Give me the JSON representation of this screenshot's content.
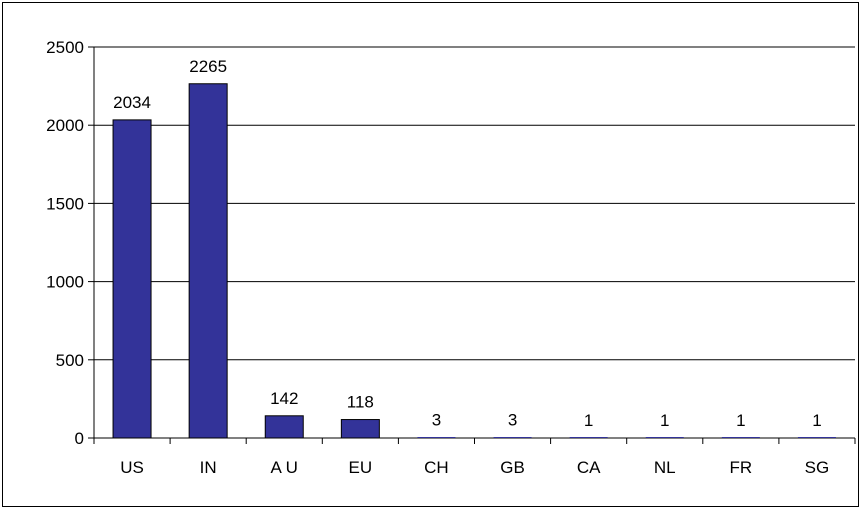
{
  "colors": {
    "bar_fill": "#333399",
    "bar_stroke": "#000000",
    "grid": "#000000",
    "background": "#ffffff"
  },
  "chart_data": {
    "type": "bar",
    "categories": [
      "US",
      "IN",
      "AU",
      "EU",
      "CH",
      "GB",
      "CA",
      "NL",
      "FR",
      "SG"
    ],
    "category_labels": [
      "US",
      "IN",
      "A U",
      "EU",
      "CH",
      "GB",
      "CA",
      "NL",
      "FR",
      "SG"
    ],
    "values": [
      2034,
      2265,
      142,
      118,
      3,
      3,
      1,
      1,
      1,
      1
    ],
    "data_labels": [
      "2034",
      "2265",
      "142",
      "118",
      "3",
      "3",
      "1",
      "1",
      "1",
      "1"
    ],
    "yticks": [
      0,
      500,
      1000,
      1500,
      2000,
      2500
    ],
    "ytick_labels": [
      "0",
      "500",
      "1000",
      "1500",
      "2000",
      "2500"
    ],
    "ylim": [
      0,
      2500
    ],
    "grid": true,
    "legend": "none",
    "title": "",
    "xlabel": "",
    "ylabel": ""
  }
}
